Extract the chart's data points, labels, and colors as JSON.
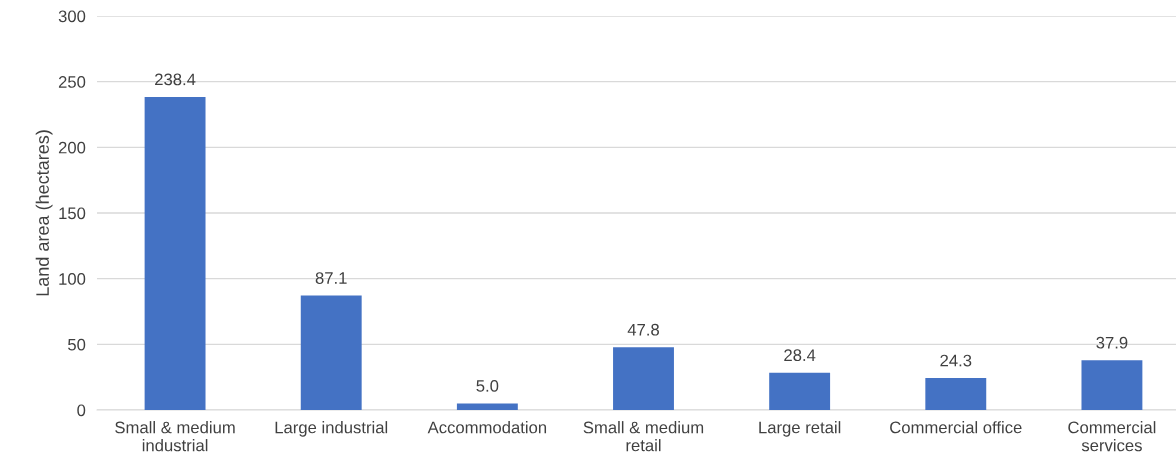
{
  "chart_data": {
    "type": "bar",
    "ylabel": "Land area (hectares)",
    "categories": [
      "Small & medium\nindustrial",
      "Large industrial",
      "Accommodation",
      "Small & medium\nretail",
      "Large retail",
      "Commercial office",
      "Commercial\nservices"
    ],
    "values": [
      238.4,
      87.1,
      5.0,
      47.8,
      28.4,
      24.3,
      37.9
    ],
    "value_labels": [
      "238.4",
      "87.1",
      "5.0",
      "47.8",
      "28.4",
      "24.3",
      "37.9"
    ],
    "color": "#4472c4",
    "ylim": [
      0,
      300
    ],
    "yticks": [
      0,
      50,
      100,
      150,
      200,
      250,
      300
    ],
    "grid": "y",
    "legend": false
  }
}
